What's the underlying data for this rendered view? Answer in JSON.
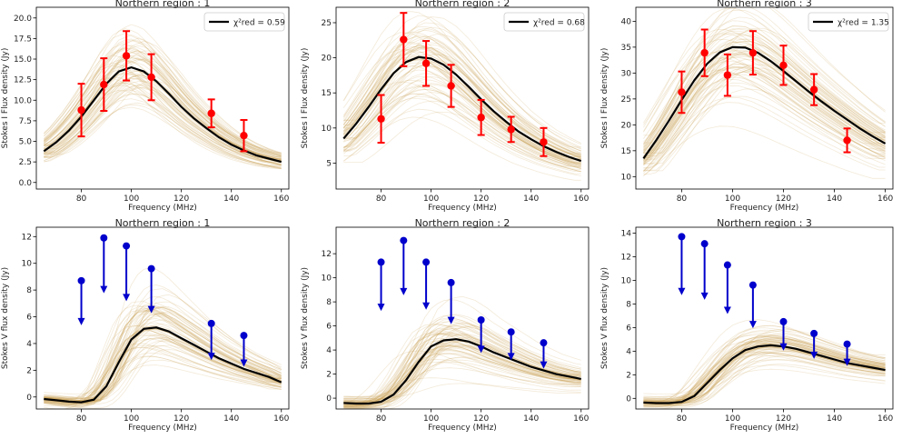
{
  "chart_data": [
    {
      "type": "line",
      "title": "Northern region : 1",
      "xlabel": "Frequency (MHz)",
      "ylabel": "Stokes I Flux density (Jy)",
      "xlim": [
        62,
        163
      ],
      "ylim": [
        -0.8,
        21.3
      ],
      "xticks": [
        80,
        100,
        120,
        140,
        160
      ],
      "yticks": [
        0.0,
        2.5,
        5.0,
        7.5,
        10.0,
        12.5,
        15.0,
        17.5,
        20.0
      ],
      "ytick_format": 1,
      "legend": {
        "label": "χ²red = 0.59",
        "placement": "top-right"
      },
      "fit": {
        "x": [
          65,
          70,
          75,
          80,
          85,
          90,
          95,
          100,
          105,
          110,
          115,
          120,
          125,
          130,
          135,
          140,
          145,
          150,
          155,
          160
        ],
        "y": [
          3.8,
          4.9,
          6.3,
          8.0,
          10.0,
          12.0,
          13.5,
          14.0,
          13.5,
          12.3,
          10.8,
          9.2,
          7.8,
          6.6,
          5.5,
          4.6,
          3.9,
          3.3,
          2.9,
          2.5
        ]
      },
      "band_spread": 0.2,
      "measurements": [
        {
          "x": 80,
          "y": 8.8,
          "err": 3.2
        },
        {
          "x": 89,
          "y": 11.9,
          "err": 3.2
        },
        {
          "x": 98,
          "y": 15.4,
          "err": 3.0
        },
        {
          "x": 108,
          "y": 12.8,
          "err": 2.8
        },
        {
          "x": 132,
          "y": 8.4,
          "err": 1.7
        },
        {
          "x": 145,
          "y": 5.7,
          "err": 1.9
        }
      ],
      "marker_color": "#ff0000"
    },
    {
      "type": "line",
      "title": "Northern region : 2",
      "xlabel": "Frequency (MHz)",
      "ylabel": "Stokes I Flux density (Jy)",
      "xlim": [
        62,
        163
      ],
      "ylim": [
        1.3,
        27.2
      ],
      "xticks": [
        80,
        100,
        120,
        140,
        160
      ],
      "yticks": [
        5,
        10,
        15,
        20,
        25
      ],
      "ytick_format": 0,
      "legend": {
        "label": "χ²red = 0.68",
        "placement": "top-right"
      },
      "fit": {
        "x": [
          65,
          70,
          75,
          80,
          85,
          90,
          95,
          100,
          105,
          110,
          115,
          120,
          125,
          130,
          135,
          140,
          145,
          150,
          155,
          160
        ],
        "y": [
          8.5,
          10.6,
          13.0,
          15.5,
          17.8,
          19.4,
          20.1,
          19.9,
          19.0,
          17.6,
          15.9,
          14.1,
          12.4,
          10.9,
          9.5,
          8.4,
          7.4,
          6.6,
          5.9,
          5.3
        ]
      },
      "band_spread": 0.2,
      "measurements": [
        {
          "x": 80,
          "y": 11.3,
          "err": 3.4
        },
        {
          "x": 89,
          "y": 22.6,
          "err": 3.8
        },
        {
          "x": 98,
          "y": 19.2,
          "err": 3.2
        },
        {
          "x": 108,
          "y": 16.0,
          "err": 3.0
        },
        {
          "x": 120,
          "y": 11.5,
          "err": 2.5
        },
        {
          "x": 132,
          "y": 9.8,
          "err": 1.8
        },
        {
          "x": 145,
          "y": 8.0,
          "err": 2.0
        }
      ],
      "marker_color": "#ff0000"
    },
    {
      "type": "line",
      "title": "Northern region : 3",
      "xlabel": "Frequency (MHz)",
      "ylabel": "Stokes I Flux density (Jy)",
      "xlim": [
        62,
        163
      ],
      "ylim": [
        7.6,
        42.7
      ],
      "xticks": [
        80,
        100,
        120,
        140,
        160
      ],
      "yticks": [
        10,
        15,
        20,
        25,
        30,
        35,
        40
      ],
      "ytick_format": 0,
      "legend": {
        "label": "χ²red = 1.35",
        "placement": "top-right"
      },
      "fit": {
        "x": [
          65,
          70,
          75,
          80,
          85,
          90,
          95,
          100,
          105,
          110,
          115,
          120,
          125,
          130,
          135,
          140,
          145,
          150,
          155,
          160
        ],
        "y": [
          13.5,
          17.0,
          20.8,
          24.8,
          28.6,
          31.8,
          34.0,
          35.0,
          34.9,
          33.9,
          32.3,
          30.4,
          28.4,
          26.4,
          24.5,
          22.7,
          21.0,
          19.3,
          17.8,
          16.4
        ]
      },
      "band_spread": 0.15,
      "measurements": [
        {
          "x": 80,
          "y": 26.3,
          "err": 4.0
        },
        {
          "x": 89,
          "y": 33.9,
          "err": 4.5
        },
        {
          "x": 98,
          "y": 29.6,
          "err": 4.0
        },
        {
          "x": 108,
          "y": 33.9,
          "err": 4.2
        },
        {
          "x": 120,
          "y": 31.5,
          "err": 3.8
        },
        {
          "x": 132,
          "y": 26.8,
          "err": 3.0
        },
        {
          "x": 145,
          "y": 17.0,
          "err": 2.3
        }
      ],
      "marker_color": "#ff0000"
    },
    {
      "type": "line",
      "title": "Northern region : 1",
      "xlabel": "Frequency (MHz)",
      "ylabel": "Stokes V flux density (Jy)",
      "xlim": [
        62,
        163
      ],
      "ylim": [
        -0.9,
        12.7
      ],
      "xticks": [
        80,
        100,
        120,
        140,
        160
      ],
      "yticks": [
        0,
        2,
        4,
        6,
        8,
        10,
        12
      ],
      "ytick_format": 0,
      "fit": {
        "x": [
          65,
          70,
          75,
          80,
          85,
          90,
          95,
          100,
          105,
          110,
          115,
          120,
          125,
          130,
          135,
          140,
          145,
          150,
          155,
          160
        ],
        "y": [
          -0.15,
          -0.25,
          -0.35,
          -0.4,
          -0.2,
          0.8,
          2.6,
          4.3,
          5.1,
          5.2,
          4.9,
          4.4,
          3.9,
          3.4,
          2.9,
          2.5,
          2.1,
          1.8,
          1.5,
          1.1
        ]
      },
      "band_spread": 0.3,
      "upper_limits": [
        {
          "x": 80,
          "y": 8.7,
          "arrow": 3.2
        },
        {
          "x": 89,
          "y": 11.9,
          "arrow": 4.0
        },
        {
          "x": 98,
          "y": 11.3,
          "arrow": 4.0
        },
        {
          "x": 108,
          "y": 9.6,
          "arrow": 3.2
        },
        {
          "x": 132,
          "y": 5.5,
          "arrow": 2.6
        },
        {
          "x": 145,
          "y": 4.6,
          "arrow": 2.2
        }
      ],
      "marker_color": "#0000cc"
    },
    {
      "type": "line",
      "title": "Northern region : 2",
      "xlabel": "Frequency (MHz)",
      "ylabel": "Stokes V flux density (Jy)",
      "xlim": [
        62,
        163
      ],
      "ylim": [
        -0.9,
        14.2
      ],
      "xticks": [
        80,
        100,
        120,
        140,
        160
      ],
      "yticks": [
        0,
        2,
        4,
        6,
        8,
        10,
        12
      ],
      "ytick_format": 0,
      "fit": {
        "x": [
          65,
          70,
          75,
          80,
          85,
          90,
          95,
          100,
          105,
          110,
          115,
          120,
          125,
          130,
          135,
          140,
          145,
          150,
          155,
          160
        ],
        "y": [
          -0.4,
          -0.45,
          -0.45,
          -0.3,
          0.3,
          1.5,
          3.0,
          4.3,
          4.8,
          4.9,
          4.7,
          4.3,
          3.8,
          3.4,
          3.0,
          2.6,
          2.3,
          2.0,
          1.8,
          1.6
        ]
      },
      "band_spread": 0.3,
      "upper_limits": [
        {
          "x": 80,
          "y": 11.3,
          "arrow": 3.9
        },
        {
          "x": 89,
          "y": 13.1,
          "arrow": 4.4
        },
        {
          "x": 98,
          "y": 11.3,
          "arrow": 3.8
        },
        {
          "x": 108,
          "y": 9.6,
          "arrow": 3.3
        },
        {
          "x": 120,
          "y": 6.5,
          "arrow": 2.6
        },
        {
          "x": 132,
          "y": 5.5,
          "arrow": 2.2
        },
        {
          "x": 145,
          "y": 4.6,
          "arrow": 2.0
        }
      ],
      "marker_color": "#0000cc"
    },
    {
      "type": "line",
      "title": "Northern region : 3",
      "xlabel": "Frequency (MHz)",
      "ylabel": "Stokes V flux density (Jy)",
      "xlim": [
        62,
        163
      ],
      "ylim": [
        -0.9,
        14.5
      ],
      "xticks": [
        80,
        100,
        120,
        140,
        160
      ],
      "yticks": [
        0,
        2,
        4,
        6,
        8,
        10,
        12,
        14
      ],
      "ytick_format": 0,
      "fit": {
        "x": [
          65,
          70,
          75,
          80,
          85,
          90,
          95,
          100,
          105,
          110,
          115,
          120,
          125,
          130,
          135,
          140,
          145,
          150,
          155,
          160
        ],
        "y": [
          -0.35,
          -0.4,
          -0.4,
          -0.3,
          0.2,
          1.3,
          2.4,
          3.4,
          4.1,
          4.4,
          4.5,
          4.4,
          4.2,
          3.9,
          3.6,
          3.3,
          3.0,
          2.8,
          2.6,
          2.4
        ]
      },
      "band_spread": 0.2,
      "upper_limits": [
        {
          "x": 80,
          "y": 13.7,
          "arrow": 4.8
        },
        {
          "x": 89,
          "y": 13.1,
          "arrow": 4.6
        },
        {
          "x": 98,
          "y": 11.3,
          "arrow": 4.0
        },
        {
          "x": 108,
          "y": 9.6,
          "arrow": 3.5
        },
        {
          "x": 120,
          "y": 6.5,
          "arrow": 2.3
        },
        {
          "x": 132,
          "y": 5.5,
          "arrow": 2.0
        },
        {
          "x": 145,
          "y": 4.6,
          "arrow": 1.7
        }
      ],
      "marker_color": "#0000cc"
    }
  ],
  "colors": {
    "fit_line": "#000000",
    "sample_curves": "#c8a050"
  }
}
